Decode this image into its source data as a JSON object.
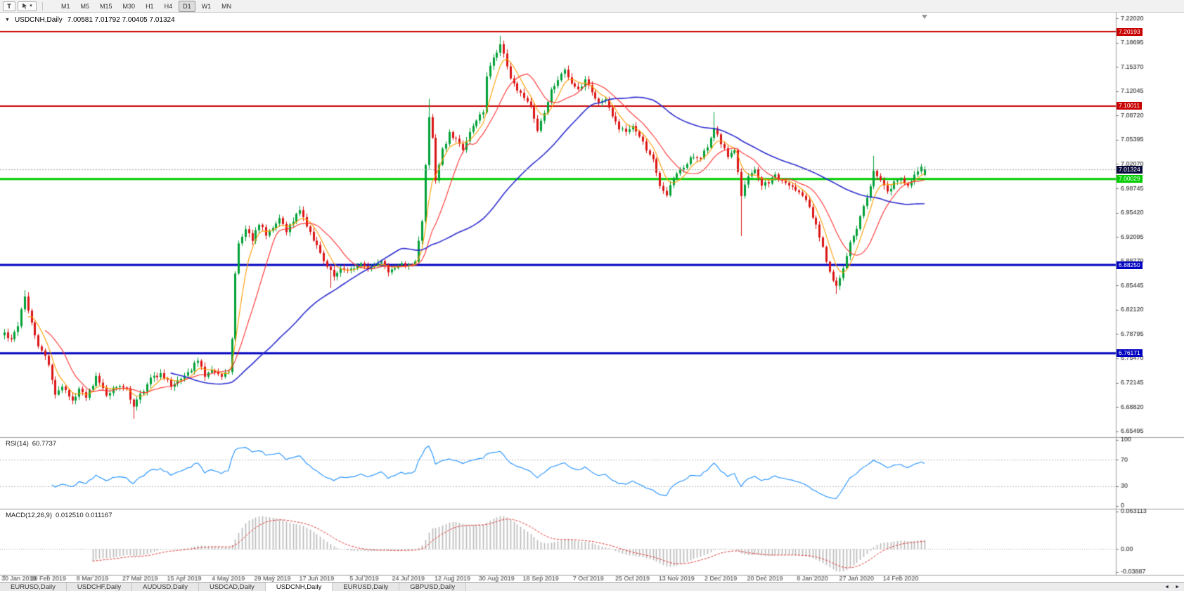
{
  "toolbar": {
    "text_tool_label": "T",
    "drawing_tool": {
      "caret": "▾"
    },
    "timeframes": [
      {
        "label": "M1",
        "active": false
      },
      {
        "label": "M5",
        "active": false
      },
      {
        "label": "M15",
        "active": false
      },
      {
        "label": "M30",
        "active": false
      },
      {
        "label": "H1",
        "active": false
      },
      {
        "label": "H4",
        "active": false
      },
      {
        "label": "D1",
        "active": true
      },
      {
        "label": "W1",
        "active": false
      },
      {
        "label": "MN",
        "active": false
      }
    ]
  },
  "chart": {
    "title": {
      "expander": "▼",
      "symbol_period": "USDCNH,Daily",
      "ohlc": "7.00581 7.01792 7.00405 7.01324"
    },
    "price_axis": {
      "labels": [
        "7.22020",
        "7.18695",
        "7.15370",
        "7.12045",
        "7.08720",
        "7.05395",
        "7.02070",
        "6.98745",
        "6.95420",
        "6.92095",
        "6.88770",
        "6.85445",
        "6.82120",
        "6.78795",
        "6.75470",
        "6.72145",
        "6.68820",
        "6.65495"
      ]
    },
    "hlines": [
      {
        "name": "resistance-upper",
        "price": 7.20193,
        "label": "7.20193",
        "color": "#c80000",
        "line_width": 2,
        "text_color": "#ffffff"
      },
      {
        "name": "resistance-mid",
        "price": 7.10011,
        "label": "7.10011",
        "color": "#c80000",
        "line_width": 2,
        "text_color": "#ffffff"
      },
      {
        "name": "support-green",
        "price": 7.00029,
        "label": "7.00029",
        "color": "#00cc00",
        "line_width": 3,
        "text_color": "#ffffff"
      },
      {
        "name": "support-blue-upper",
        "price": 6.8825,
        "label": "6.88250",
        "color": "#0000c0",
        "line_width": 3,
        "text_color": "#ffffff"
      },
      {
        "name": "support-blue-lower",
        "price": 6.76171,
        "label": "6.76171",
        "color": "#0000c0",
        "line_width": 3,
        "text_color": "#ffffff"
      }
    ],
    "current_price": {
      "price": 7.01324,
      "label": "7.01324",
      "tag_bg": "#0a0a3c",
      "text_color": "#ffffff",
      "line_color": "#999999"
    },
    "colors": {
      "up": "#00a136",
      "down": "#dc1414",
      "background": "#ffffff",
      "axis_text": "#161616"
    }
  },
  "chart_data": {
    "type": "candlestick",
    "symbol": "USDCNH",
    "timeframe": "Daily",
    "bars": 272,
    "ylim": [
      6.6469,
      7.228
    ],
    "last_bar_ohlc": {
      "open": 7.00581,
      "high": 7.01792,
      "low": 7.00405,
      "close": 7.01324
    },
    "x_labels": [
      {
        "index": 0,
        "label": "30 Jan 2019"
      },
      {
        "index": 13,
        "label": "18 Feb 2019"
      },
      {
        "index": 26,
        "label": "8 Mar 2019"
      },
      {
        "index": 40,
        "label": "27 Mar 2019"
      },
      {
        "index": 53,
        "label": "15 Apr 2019"
      },
      {
        "index": 66,
        "label": "4 May 2019"
      },
      {
        "index": 79,
        "label": "29 May 2019"
      },
      {
        "index": 92,
        "label": "17 Jun 2019"
      },
      {
        "index": 106,
        "label": "5 Jul 2019"
      },
      {
        "index": 119,
        "label": "24 Jul 2019"
      },
      {
        "index": 132,
        "label": "12 Aug 2019"
      },
      {
        "index": 145,
        "label": "30 Aug 2019"
      },
      {
        "index": 158,
        "label": "18 Sep 2019"
      },
      {
        "index": 172,
        "label": "7 Oct 2019"
      },
      {
        "index": 185,
        "label": "25 Oct 2019"
      },
      {
        "index": 198,
        "label": "13 Nov 2019"
      },
      {
        "index": 211,
        "label": "2 Dec 2019"
      },
      {
        "index": 224,
        "label": "20 Dec 2019"
      },
      {
        "index": 238,
        "label": "8 Jan 2020"
      },
      {
        "index": 251,
        "label": "27 Jan 2020"
      },
      {
        "index": 264,
        "label": "14 Feb 2020"
      }
    ],
    "close_waypoints": [
      [
        0,
        6.79
      ],
      [
        2,
        6.778
      ],
      [
        4,
        6.8
      ],
      [
        6,
        6.838
      ],
      [
        8,
        6.805
      ],
      [
        10,
        6.772
      ],
      [
        13,
        6.748
      ],
      [
        15,
        6.706
      ],
      [
        17,
        6.716
      ],
      [
        20,
        6.698
      ],
      [
        22,
        6.712
      ],
      [
        24,
        6.703
      ],
      [
        27,
        6.728
      ],
      [
        30,
        6.705
      ],
      [
        33,
        6.718
      ],
      [
        36,
        6.71
      ],
      [
        38,
        6.688
      ],
      [
        40,
        6.705
      ],
      [
        43,
        6.726
      ],
      [
        46,
        6.732
      ],
      [
        49,
        6.718
      ],
      [
        52,
        6.727
      ],
      [
        55,
        6.74
      ],
      [
        57,
        6.754
      ],
      [
        59,
        6.731
      ],
      [
        62,
        6.738
      ],
      [
        64,
        6.73
      ],
      [
        66,
        6.737
      ],
      [
        67,
        6.78
      ],
      [
        68,
        6.87
      ],
      [
        69,
        6.912
      ],
      [
        71,
        6.93
      ],
      [
        73,
        6.918
      ],
      [
        75,
        6.938
      ],
      [
        77,
        6.925
      ],
      [
        79,
        6.936
      ],
      [
        81,
        6.947
      ],
      [
        83,
        6.93
      ],
      [
        85,
        6.944
      ],
      [
        87,
        6.956
      ],
      [
        89,
        6.938
      ],
      [
        91,
        6.917
      ],
      [
        93,
        6.898
      ],
      [
        95,
        6.878
      ],
      [
        97,
        6.868
      ],
      [
        99,
        6.88
      ],
      [
        101,
        6.873
      ],
      [
        103,
        6.88
      ],
      [
        105,
        6.884
      ],
      [
        107,
        6.877
      ],
      [
        109,
        6.882
      ],
      [
        111,
        6.886
      ],
      [
        113,
        6.874
      ],
      [
        115,
        6.88
      ],
      [
        117,
        6.885
      ],
      [
        119,
        6.882
      ],
      [
        121,
        6.89
      ],
      [
        123,
        6.942
      ],
      [
        124,
        7.02
      ],
      [
        125,
        7.082
      ],
      [
        126,
        7.058
      ],
      [
        127,
        7.0
      ],
      [
        129,
        7.04
      ],
      [
        131,
        7.062
      ],
      [
        133,
        7.056
      ],
      [
        135,
        7.04
      ],
      [
        137,
        7.062
      ],
      [
        139,
        7.08
      ],
      [
        141,
        7.094
      ],
      [
        142,
        7.14
      ],
      [
        144,
        7.168
      ],
      [
        146,
        7.184
      ],
      [
        147,
        7.172
      ],
      [
        149,
        7.14
      ],
      [
        151,
        7.122
      ],
      [
        153,
        7.112
      ],
      [
        155,
        7.098
      ],
      [
        157,
        7.068
      ],
      [
        159,
        7.092
      ],
      [
        161,
        7.12
      ],
      [
        163,
        7.135
      ],
      [
        165,
        7.148
      ],
      [
        167,
        7.13
      ],
      [
        169,
        7.122
      ],
      [
        171,
        7.136
      ],
      [
        173,
        7.118
      ],
      [
        175,
        7.102
      ],
      [
        177,
        7.112
      ],
      [
        179,
        7.088
      ],
      [
        181,
        7.07
      ],
      [
        183,
        7.066
      ],
      [
        185,
        7.072
      ],
      [
        187,
        7.058
      ],
      [
        189,
        7.04
      ],
      [
        191,
        7.028
      ],
      [
        193,
        6.992
      ],
      [
        195,
        6.98
      ],
      [
        197,
        7.0
      ],
      [
        199,
        7.012
      ],
      [
        201,
        7.022
      ],
      [
        203,
        7.032
      ],
      [
        205,
        7.028
      ],
      [
        207,
        7.045
      ],
      [
        209,
        7.07
      ],
      [
        211,
        7.048
      ],
      [
        213,
        7.032
      ],
      [
        215,
        7.04
      ],
      [
        217,
        6.98
      ],
      [
        219,
        7.002
      ],
      [
        221,
        7.012
      ],
      [
        223,
        6.992
      ],
      [
        225,
        6.996
      ],
      [
        227,
        7.006
      ],
      [
        229,
        6.998
      ],
      [
        231,
        6.99
      ],
      [
        233,
        6.984
      ],
      [
        235,
        6.976
      ],
      [
        237,
        6.962
      ],
      [
        239,
        6.938
      ],
      [
        241,
        6.905
      ],
      [
        243,
        6.872
      ],
      [
        245,
        6.854
      ],
      [
        247,
        6.876
      ],
      [
        249,
        6.912
      ],
      [
        251,
        6.932
      ],
      [
        253,
        6.962
      ],
      [
        255,
        6.992
      ],
      [
        256,
        7.012
      ],
      [
        258,
        6.996
      ],
      [
        260,
        6.982
      ],
      [
        262,
        6.996
      ],
      [
        264,
        7.002
      ],
      [
        266,
        6.992
      ],
      [
        268,
        7.006
      ],
      [
        270,
        7.016
      ],
      [
        271,
        7.0132
      ]
    ],
    "wick_overrides": {
      "6": {
        "high": 6.848
      },
      "38": {
        "low": 6.672
      },
      "96": {
        "low": 6.851
      },
      "125": {
        "high": 7.11
      },
      "146": {
        "high": 7.1965
      },
      "209": {
        "high": 7.092
      },
      "217": {
        "low": 6.922
      },
      "245": {
        "low": 6.843
      },
      "256": {
        "high": 7.032
      },
      "271": {
        "open": 7.00581,
        "high": 7.01792,
        "low": 7.00405,
        "close": 7.01324
      }
    },
    "moving_averages": [
      {
        "name": "fast",
        "method": "lwma",
        "period": 8,
        "color": "#ff9c00"
      },
      {
        "name": "mid",
        "method": "sma",
        "period": 13,
        "color": "#ff3030"
      },
      {
        "name": "slow",
        "method": "sma",
        "period": 50,
        "color": "#2d2dd0"
      }
    ]
  },
  "rsi": {
    "name": "RSI(14)",
    "value": "60.7737",
    "period": 14,
    "color": "#1e90ff",
    "levels": [
      70,
      30
    ],
    "axis_labels": [
      {
        "value": 100,
        "label": "100"
      },
      {
        "value": 70,
        "label": "70"
      },
      {
        "value": 30,
        "label": "30"
      },
      {
        "value": 0,
        "label": "0"
      }
    ]
  },
  "macd": {
    "name": "MACD(12,26,9)",
    "values": "0.012510 0.011167",
    "fast": 12,
    "slow": 26,
    "signal": 9,
    "histogram_color": "#b9b9b9",
    "signal_color": "#e03030",
    "ymax": 0.063113,
    "ymin": -0.03887,
    "axis_labels": [
      {
        "value": 0.063113,
        "label": "0.063113"
      },
      {
        "value": 0,
        "label": "0.00"
      },
      {
        "value": -0.03887,
        "label": "-0.03887"
      }
    ]
  },
  "tabs": {
    "items": [
      {
        "label": "EURUSD,Daily",
        "active": false
      },
      {
        "label": "USDCHF,Daily",
        "active": false
      },
      {
        "label": "AUDUSD,Daily",
        "active": false
      },
      {
        "label": "USDCAD,Daily",
        "active": false
      },
      {
        "label": "USDCNH,Daily",
        "active": true
      },
      {
        "label": "EURUSD,Daily",
        "active": false
      },
      {
        "label": "GBPUSD,Daily",
        "active": false
      }
    ],
    "scroll_left": "◄",
    "scroll_right": "►"
  }
}
